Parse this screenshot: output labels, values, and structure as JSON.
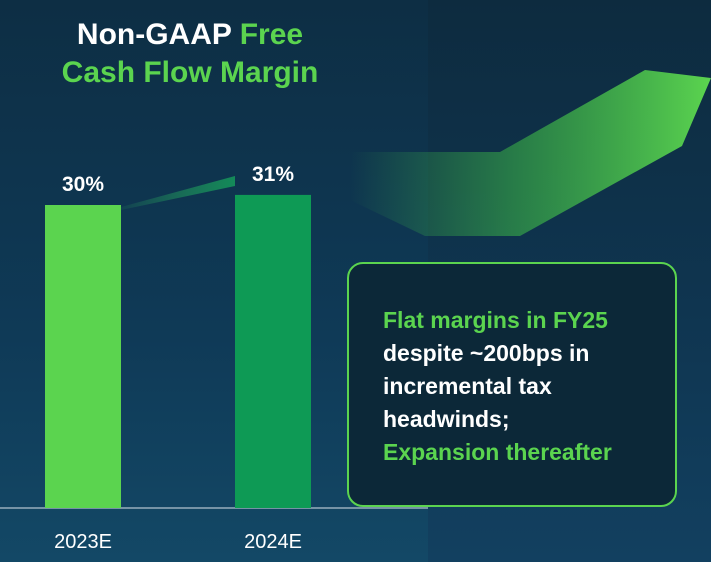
{
  "title": {
    "part1": "Non-GAAP",
    "part2": "Free",
    "line2": "Cash Flow Margin"
  },
  "colors": {
    "accent_green": "#5bd44f",
    "bar_2023": "#5bd44f",
    "bar_2024": "#0e9a55",
    "background": "#0f3550"
  },
  "chart_data": {
    "type": "bar",
    "title": "Non-GAAP Free Cash Flow Margin",
    "categories": [
      "2023E",
      "2024E"
    ],
    "values": [
      30,
      31
    ],
    "value_labels": [
      "30%",
      "31%"
    ],
    "unit": "%",
    "xlabel": "",
    "ylabel": "",
    "grid": false
  },
  "callout": {
    "line1": "Flat margins in FY25",
    "line2": "despite ~200bps in",
    "line3": "incremental tax",
    "line4": "headwinds;",
    "line5": "Expansion thereafter"
  }
}
